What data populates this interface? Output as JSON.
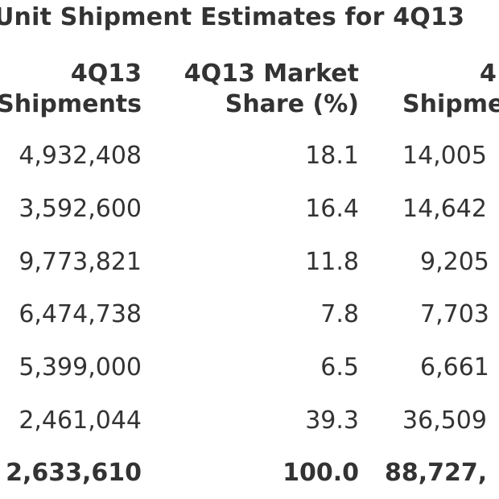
{
  "title": "Unit Shipment Estimates for 4Q13",
  "columns": [
    {
      "line1": "4Q13",
      "line2": "Shipments"
    },
    {
      "line1": "4Q13 Market",
      "line2": "Share (%)"
    },
    {
      "line1": "4",
      "line2": "Shipme"
    }
  ],
  "rows": [
    [
      "4,932,408",
      "18.1",
      "14,005"
    ],
    [
      "3,592,600",
      "16.4",
      "14,642"
    ],
    [
      "9,773,821",
      "11.8",
      "9,205"
    ],
    [
      "6,474,738",
      "7.8",
      "7,703"
    ],
    [
      "5,399,000",
      "6.5",
      "6,661"
    ],
    [
      "2,461,044",
      "39.3",
      "36,509"
    ]
  ],
  "total": [
    "2,633,610",
    "100.0",
    "88,727,"
  ]
}
